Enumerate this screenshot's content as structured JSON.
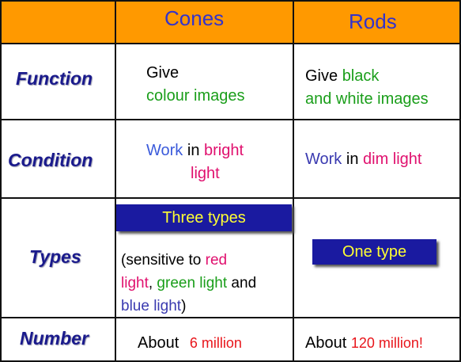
{
  "headers": {
    "col1": "Cones",
    "col2": "Rods"
  },
  "rows": {
    "function": {
      "label": "Function",
      "cones": {
        "l1": "Give",
        "l2": "colour images"
      },
      "rods": {
        "l1a": "Give ",
        "l1b": "black",
        "l2": "and white images"
      }
    },
    "condition": {
      "label": "Condition",
      "cones": {
        "a": "Work",
        "b": " in ",
        "c": "bright",
        "d": "light"
      },
      "rods": {
        "a": "Work",
        "b": " in ",
        "c": "dim light"
      }
    },
    "types": {
      "label": "Types",
      "cones_badge": "Three types",
      "cones_note": {
        "p1": "(sensitive to ",
        "p2": "red",
        "p3": "light",
        "p4": ", ",
        "p5": "green light",
        "p6": " and",
        "p7": "blue light",
        "p8": ")"
      },
      "rods_badge": "One type"
    },
    "number": {
      "label": "Number",
      "cones": {
        "a": "About",
        "b": "6 million"
      },
      "rods": {
        "a": "About ",
        "b": "120 million!"
      }
    }
  },
  "colors": {
    "header_bg": "#FF9900",
    "header_text": "#3333CC",
    "row_label": "#1a1a8c",
    "green": "#1a9e1a",
    "pink": "#e0106e",
    "red": "#e8151b",
    "blue": "#3b5bdb",
    "badge_bg": "#1a1aa0",
    "badge_text": "#ffff33"
  }
}
